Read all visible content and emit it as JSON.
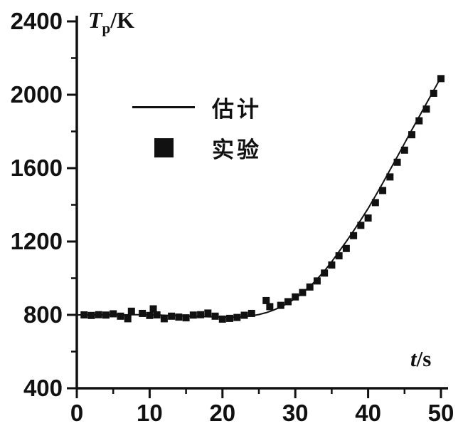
{
  "colors": {
    "ink": "#111111",
    "background": "#ffffff"
  },
  "labels": {
    "y_axis_symbol": "T",
    "y_axis_sub": "p",
    "y_axis_unit": "/K",
    "x_axis_symbol": "t",
    "x_axis_unit": "/s",
    "legend_line": "估计",
    "legend_square": "实验"
  },
  "chart_data": {
    "type": "line",
    "title": "",
    "xlabel": "t/s",
    "ylabel": "Tp/K",
    "xlim": [
      0,
      50
    ],
    "ylim": [
      400,
      2400
    ],
    "x_ticks": [
      0,
      10,
      20,
      30,
      40,
      50
    ],
    "y_ticks": [
      400,
      800,
      1200,
      1600,
      2000,
      2400
    ],
    "x_minor_ticks": [
      5,
      15,
      25,
      35,
      45
    ],
    "y_minor_ticks": [
      600,
      1000,
      1400,
      1800,
      2200
    ],
    "grid": false,
    "legend_position": "upper-left-inside",
    "legend": [
      {
        "label": "估计",
        "marker": "line"
      },
      {
        "label": "实验",
        "marker": "filled-square"
      }
    ],
    "series": [
      {
        "name": "估计",
        "type": "line",
        "points": [
          [
            0,
            800
          ],
          [
            2,
            800
          ],
          [
            4,
            800
          ],
          [
            6,
            800
          ],
          [
            8,
            801
          ],
          [
            10,
            801
          ],
          [
            12,
            798
          ],
          [
            14,
            795
          ],
          [
            16,
            792
          ],
          [
            18,
            790
          ],
          [
            20,
            788
          ],
          [
            22,
            788
          ],
          [
            24,
            795
          ],
          [
            25,
            802
          ],
          [
            26,
            812
          ],
          [
            27,
            826
          ],
          [
            28,
            843
          ],
          [
            29,
            864
          ],
          [
            30,
            890
          ],
          [
            31,
            920
          ],
          [
            32,
            955
          ],
          [
            33,
            995
          ],
          [
            34,
            1040
          ],
          [
            35,
            1090
          ],
          [
            36,
            1145
          ],
          [
            37,
            1200
          ],
          [
            38,
            1258
          ],
          [
            39,
            1318
          ],
          [
            40,
            1380
          ],
          [
            41,
            1448
          ],
          [
            42,
            1518
          ],
          [
            43,
            1590
          ],
          [
            44,
            1662
          ],
          [
            45,
            1735
          ],
          [
            46,
            1808
          ],
          [
            47,
            1880
          ],
          [
            48,
            1952
          ],
          [
            49,
            2024
          ],
          [
            50,
            2095
          ]
        ]
      },
      {
        "name": "实验",
        "type": "scatter",
        "points": [
          [
            1,
            800
          ],
          [
            2,
            797
          ],
          [
            3,
            801
          ],
          [
            4,
            799
          ],
          [
            5,
            806
          ],
          [
            6,
            793
          ],
          [
            7,
            779
          ],
          [
            7.5,
            820
          ],
          [
            9,
            808
          ],
          [
            10,
            797
          ],
          [
            10.5,
            833
          ],
          [
            11,
            800
          ],
          [
            12,
            779
          ],
          [
            13,
            793
          ],
          [
            14,
            788
          ],
          [
            15,
            784
          ],
          [
            16,
            799
          ],
          [
            17,
            801
          ],
          [
            18,
            810
          ],
          [
            19,
            793
          ],
          [
            20,
            777
          ],
          [
            21,
            781
          ],
          [
            22,
            786
          ],
          [
            23,
            798
          ],
          [
            24,
            808
          ],
          [
            26,
            878
          ],
          [
            26.5,
            845
          ],
          [
            28,
            852
          ],
          [
            29,
            872
          ],
          [
            30,
            898
          ],
          [
            31,
            922
          ],
          [
            32,
            952
          ],
          [
            33,
            985
          ],
          [
            34,
            1028
          ],
          [
            35,
            1072
          ],
          [
            36,
            1122
          ],
          [
            37,
            1162
          ],
          [
            38,
            1232
          ],
          [
            39,
            1288
          ],
          [
            40,
            1328
          ],
          [
            41,
            1412
          ],
          [
            42,
            1478
          ],
          [
            43,
            1552
          ],
          [
            44,
            1632
          ],
          [
            45,
            1698
          ],
          [
            46,
            1782
          ],
          [
            47,
            1858
          ],
          [
            48,
            1922
          ],
          [
            49,
            2008
          ],
          [
            50,
            2088
          ]
        ]
      }
    ]
  }
}
